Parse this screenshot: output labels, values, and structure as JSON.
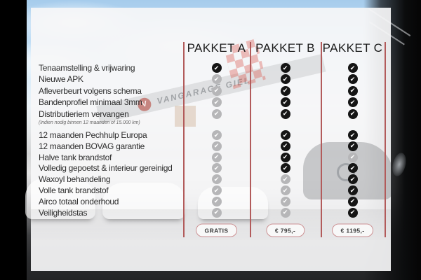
{
  "header": {
    "columns": [
      "PAKKET A",
      "PAKKET B",
      "PAKKET C"
    ]
  },
  "rows": [
    {
      "label": "Tenaamstelling & vrijwaring",
      "checks": [
        true,
        true,
        true
      ]
    },
    {
      "label": "Nieuwe APK",
      "checks": [
        false,
        true,
        true
      ]
    },
    {
      "label": "Afleverbeurt volgens schema",
      "checks": [
        false,
        true,
        true
      ]
    },
    {
      "label": "Bandenprofiel minimaal 3mm",
      "checks": [
        false,
        true,
        true
      ]
    },
    {
      "label": "Distributieriem vervangen",
      "note": "(Indien nodig binnen 12 maanden of 15.000 km)",
      "checks": [
        false,
        true,
        true
      ]
    },
    {
      "label": "12 maanden Pechhulp Europa",
      "checks": [
        false,
        true,
        true
      ]
    },
    {
      "label": "12 maanden BOVAG garantie",
      "checks": [
        false,
        true,
        true
      ]
    },
    {
      "label": "Halve tank brandstof",
      "checks": [
        false,
        true,
        false
      ]
    },
    {
      "label": "Volledig gepoetst & interieur gereinigd",
      "checks": [
        false,
        true,
        true
      ]
    },
    {
      "label": "Waxoyl behandeling",
      "checks": [
        false,
        false,
        true
      ]
    },
    {
      "label": "Volle tank brandstof",
      "checks": [
        false,
        false,
        true
      ]
    },
    {
      "label": "Airco totaal onderhoud",
      "checks": [
        false,
        false,
        true
      ]
    },
    {
      "label": "Veiligheidstas",
      "checks": [
        false,
        false,
        true
      ]
    }
  ],
  "footer": {
    "prices": [
      "GRATIS",
      "€ 795,-",
      "€ 1195,-"
    ]
  },
  "background": {
    "building_sign": "VANGARAGE GIEL",
    "logo_letter": "V"
  },
  "colors": {
    "accent_line": "#b25b5b",
    "check_on": "#151515",
    "check_off": "#b6b6b8",
    "pill_border": "#cc9193"
  }
}
